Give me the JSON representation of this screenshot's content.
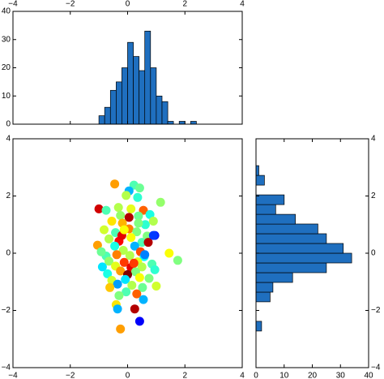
{
  "chart_data": [
    {
      "id": "scatter",
      "type": "scatter",
      "title": "",
      "xlabel": "",
      "ylabel": "",
      "xlim": [
        -4,
        4
      ],
      "ylim": [
        -4,
        4
      ],
      "xticks": [
        "−4",
        "−2",
        "0",
        "2",
        "4"
      ],
      "yticks": [
        "−4",
        "−2",
        "0",
        "2",
        "4"
      ],
      "grid": false,
      "colormap": "jet",
      "points": [
        [
          -0.45,
          2.42,
          0.72
        ],
        [
          0.22,
          2.38,
          0.45
        ],
        [
          0.42,
          2.28,
          0.48
        ],
        [
          0.05,
          2.18,
          0.3
        ],
        [
          -0.05,
          2.02,
          0.55
        ],
        [
          0.35,
          1.95,
          0.42
        ],
        [
          1.15,
          1.78,
          0.52
        ],
        [
          -1.0,
          1.55,
          0.92
        ],
        [
          -0.75,
          1.5,
          0.45
        ],
        [
          -0.32,
          1.6,
          0.55
        ],
        [
          0.12,
          1.55,
          0.6
        ],
        [
          0.55,
          1.5,
          0.78
        ],
        [
          -0.25,
          1.32,
          0.52
        ],
        [
          0.05,
          1.25,
          0.95
        ],
        [
          0.38,
          1.3,
          0.48
        ],
        [
          0.78,
          1.35,
          0.4
        ],
        [
          -0.55,
          1.12,
          0.65
        ],
        [
          -0.18,
          1.05,
          0.7
        ],
        [
          0.62,
          1.0,
          0.42
        ],
        [
          0.9,
          1.12,
          0.55
        ],
        [
          -0.82,
          0.82,
          0.58
        ],
        [
          -0.42,
          0.72,
          0.45
        ],
        [
          0.05,
          0.85,
          0.75
        ],
        [
          0.32,
          0.75,
          0.5
        ],
        [
          -0.65,
          0.5,
          0.55
        ],
        [
          -0.3,
          0.42,
          0.88
        ],
        [
          0.12,
          0.55,
          0.62
        ],
        [
          0.5,
          0.38,
          0.45
        ],
        [
          0.68,
          0.6,
          0.5
        ],
        [
          0.95,
          0.62,
          0.15
        ],
        [
          -1.05,
          0.28,
          0.72
        ],
        [
          -0.45,
          0.25,
          0.4
        ],
        [
          0.25,
          0.25,
          0.3
        ],
        [
          0.72,
          0.38,
          0.95
        ],
        [
          1.45,
          0.0,
          0.62
        ],
        [
          -0.15,
          0.1,
          0.55
        ],
        [
          0.45,
          0.05,
          0.8
        ],
        [
          1.75,
          -0.25,
          0.5
        ],
        [
          -0.75,
          -0.1,
          0.45
        ],
        [
          -0.38,
          -0.05,
          0.75
        ],
        [
          0.08,
          -0.08,
          0.55
        ],
        [
          0.58,
          -0.12,
          0.38
        ],
        [
          -0.65,
          -0.28,
          0.52
        ],
        [
          -0.12,
          -0.32,
          0.82
        ],
        [
          0.35,
          -0.3,
          0.6
        ],
        [
          0.85,
          -0.38,
          0.45
        ],
        [
          -0.88,
          -0.48,
          0.35
        ],
        [
          -0.42,
          -0.45,
          0.6
        ],
        [
          0.12,
          -0.5,
          0.9
        ],
        [
          0.5,
          -0.48,
          0.55
        ],
        [
          -0.25,
          -0.62,
          0.72
        ],
        [
          0.28,
          -0.65,
          0.5
        ],
        [
          0.95,
          -0.58,
          0.42
        ],
        [
          -0.7,
          -0.72,
          0.4
        ],
        [
          0.0,
          -0.75,
          1.0
        ],
        [
          -0.55,
          -0.95,
          0.58
        ],
        [
          -0.08,
          -0.92,
          0.35
        ],
        [
          0.42,
          -0.85,
          0.62
        ],
        [
          0.75,
          -0.88,
          0.5
        ],
        [
          -0.35,
          -1.08,
          0.28
        ],
        [
          0.15,
          -1.12,
          0.55
        ],
        [
          0.52,
          -1.2,
          0.48
        ],
        [
          -0.62,
          -1.2,
          0.68
        ],
        [
          1.0,
          -1.15,
          0.58
        ],
        [
          -0.05,
          -1.35,
          0.45
        ],
        [
          0.32,
          -1.42,
          0.78
        ],
        [
          -0.3,
          -1.48,
          0.5
        ],
        [
          0.55,
          -1.62,
          0.3
        ],
        [
          -0.4,
          -1.8,
          0.65
        ],
        [
          -0.35,
          -1.95,
          0.3
        ],
        [
          0.25,
          -1.95,
          0.95
        ],
        [
          0.42,
          -2.38,
          0.12
        ],
        [
          -0.25,
          -2.65,
          0.72
        ],
        [
          0.9,
          0.62,
          0.18
        ],
        [
          -0.2,
          0.62,
          0.9
        ],
        [
          0.6,
          -0.05,
          0.25
        ],
        [
          0.22,
          -0.35,
          0.82
        ],
        [
          -0.12,
          0.82,
          0.62
        ],
        [
          0.38,
          1.05,
          0.5
        ],
        [
          -0.92,
          0.05,
          0.48
        ]
      ]
    },
    {
      "id": "histogram-x",
      "type": "bar",
      "title": "",
      "xlabel": "",
      "ylabel": "",
      "xlim": [
        -4,
        4
      ],
      "ylim": [
        0,
        40
      ],
      "xticks": [
        "−4",
        "−2",
        "0",
        "2",
        "4"
      ],
      "yticks": [
        "0",
        "10",
        "20",
        "30",
        "40"
      ],
      "bin_width": 0.2,
      "bin_start": -1.0,
      "counts": [
        3,
        6,
        12,
        15,
        20,
        29,
        24,
        19,
        33,
        20,
        10,
        8,
        1,
        0,
        1,
        0,
        1
      ],
      "color": "#1f6fbf"
    },
    {
      "id": "histogram-y",
      "type": "bar",
      "orientation": "horizontal",
      "title": "",
      "xlabel": "",
      "ylabel": "",
      "xlim": [
        0,
        40
      ],
      "ylim": [
        -4,
        4
      ],
      "xticks": [
        "0",
        "10",
        "20",
        "30",
        "40"
      ],
      "yticks": [
        "−4",
        "−2",
        "0",
        "2",
        "4"
      ],
      "bin_width": 0.34,
      "bin_start": -2.72,
      "counts": [
        2,
        0,
        0,
        5,
        6,
        13,
        25,
        34,
        31,
        25,
        22,
        14,
        7,
        10,
        0,
        3,
        1
      ],
      "color": "#1f6fbf"
    }
  ],
  "colors": {
    "bar": "#1f6fbf",
    "axis": "#000000",
    "background": "#ffffff"
  }
}
